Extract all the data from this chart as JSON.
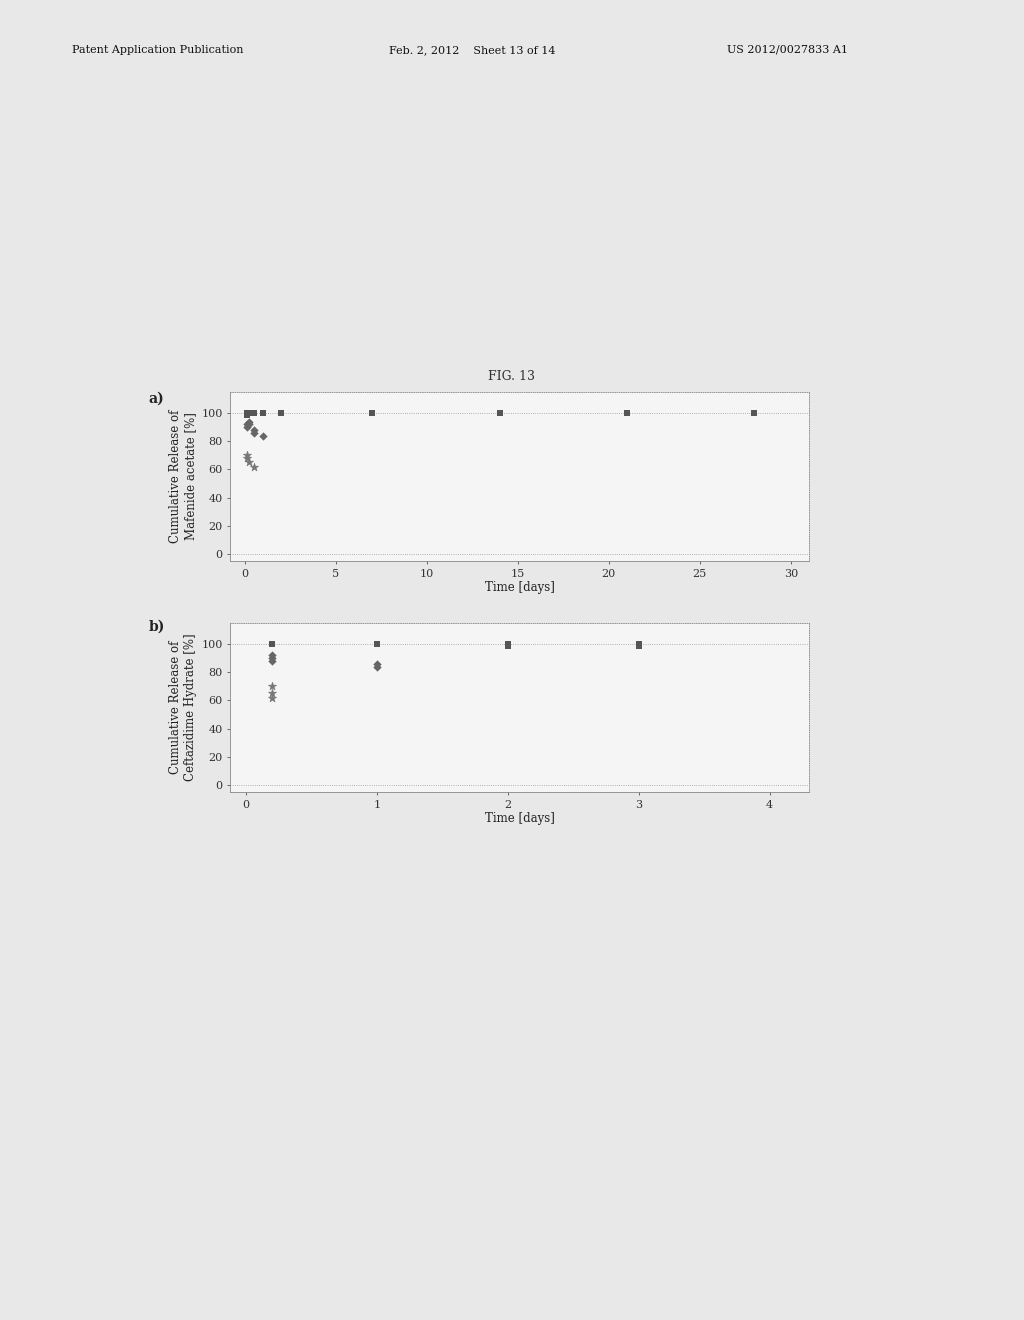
{
  "fig_title": "FIG. 13",
  "page_bg": "#e8e8e8",
  "plot_bg": "#f5f5f5",
  "panel_a": {
    "label": "a)",
    "ylabel": "Cumulative Release of\nMafenide acetate [%]",
    "xlabel": "Time [days]",
    "xlim": [
      -0.8,
      31
    ],
    "ylim": [
      -5,
      115
    ],
    "xticks": [
      0,
      5,
      10,
      15,
      20,
      25,
      30
    ],
    "yticks": [
      0,
      20,
      40,
      60,
      80,
      100
    ],
    "series1_x": [
      0.1,
      0.1,
      0.1,
      0.2,
      0.2,
      0.5,
      0.5,
      0.5,
      1.0,
      1.0,
      1.0,
      2.0,
      2.0,
      2.0,
      7.0,
      7.0,
      14.0,
      14.0,
      21.0,
      21.0,
      28.0,
      28.0
    ],
    "series1_y": [
      100,
      100,
      99,
      100,
      100,
      100,
      100,
      100,
      100,
      100,
      100,
      100,
      100,
      100,
      100,
      100,
      100,
      100,
      100,
      100,
      100,
      100
    ],
    "series2_x": [
      0.1,
      0.1,
      0.2,
      0.2,
      0.5,
      0.5,
      1.0
    ],
    "series2_y": [
      92,
      90,
      94,
      92,
      88,
      86,
      84
    ],
    "series3_x": [
      0.1,
      0.1,
      0.2,
      0.5
    ],
    "series3_y": [
      70,
      68,
      65,
      62
    ]
  },
  "panel_b": {
    "label": "b)",
    "ylabel": "Cumulative Release of\nCeftazidime Hydrate [%]",
    "xlabel": "Time [days]",
    "xlim": [
      -0.12,
      4.3
    ],
    "ylim": [
      -5,
      115
    ],
    "xticks": [
      0,
      1,
      2,
      3,
      4
    ],
    "yticks": [
      0,
      20,
      40,
      60,
      80,
      100
    ],
    "series1_x": [
      0.2,
      0.2,
      1.0,
      1.0,
      1.0,
      2.0,
      2.0,
      3.0,
      3.0
    ],
    "series1_y": [
      100,
      100,
      100,
      100,
      100,
      99,
      100,
      99,
      100
    ],
    "series2_x": [
      0.2,
      0.2,
      0.2,
      1.0,
      1.0
    ],
    "series2_y": [
      92,
      90,
      88,
      86,
      84
    ],
    "series3_x": [
      0.2,
      0.2,
      0.2
    ],
    "series3_y": [
      70,
      65,
      62
    ]
  },
  "color_sq": "#555555",
  "color_diamond": "#666666",
  "color_star": "#777777",
  "marker_size_sq": 18,
  "marker_size_diamond": 18,
  "marker_size_star": 18,
  "grid_color": "#999999",
  "border_color": "#888888",
  "font_size_label": 8.5,
  "font_size_title": 9,
  "font_size_tick": 8,
  "font_size_panel_label": 10,
  "header_fontsize": 8,
  "header_left": "Patent Application Publication",
  "header_mid": "Feb. 2, 2012    Sheet 13 of 14",
  "header_right": "US 2012/0027833 A1"
}
